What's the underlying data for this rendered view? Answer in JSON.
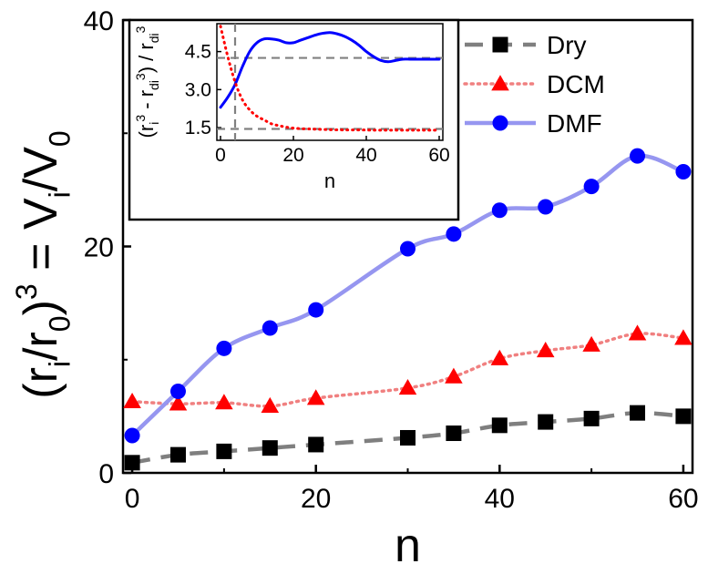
{
  "chart_data": [
    {
      "type": "line",
      "role": "main",
      "xlabel": "n",
      "ylabel": {
        "parts": [
          "(r",
          "i",
          "/r",
          "0",
          ")",
          "3",
          " = V",
          "i",
          "/V",
          "0"
        ]
      },
      "xlim": [
        -1,
        61
      ],
      "ylim": [
        0,
        40
      ],
      "x_ticks": [
        0,
        20,
        40,
        60
      ],
      "y_ticks": [
        0,
        20,
        40
      ],
      "grid": false,
      "legend_position": "top-right",
      "series": [
        {
          "name": "Dry",
          "color": "#000000",
          "line_color": "#7f7f7f",
          "line_style": "dashed",
          "marker": "square",
          "x": [
            0,
            5,
            10,
            15,
            20,
            30,
            35,
            40,
            45,
            50,
            55,
            60
          ],
          "y": [
            0.9,
            1.6,
            1.9,
            2.2,
            2.5,
            3.1,
            3.5,
            4.2,
            4.5,
            4.8,
            5.3,
            5.0
          ]
        },
        {
          "name": "DCM",
          "color": "#ff0000",
          "line_color": "#f08080",
          "line_style": "dotted",
          "marker": "triangle",
          "x": [
            0,
            5,
            10,
            15,
            20,
            30,
            35,
            40,
            45,
            50,
            55,
            60
          ],
          "y": [
            6.3,
            6.1,
            6.2,
            5.9,
            6.6,
            7.5,
            8.5,
            10.1,
            10.8,
            11.3,
            12.3,
            11.9
          ]
        },
        {
          "name": "DMF",
          "color": "#0000ff",
          "line_color": "#9696f0",
          "line_style": "solid",
          "marker": "circle",
          "x": [
            0,
            5,
            10,
            15,
            20,
            30,
            35,
            40,
            45,
            50,
            55,
            60
          ],
          "y": [
            3.3,
            7.2,
            11.0,
            12.8,
            14.4,
            19.8,
            21.1,
            23.2,
            23.5,
            25.3,
            28.0,
            26.6
          ]
        }
      ]
    },
    {
      "type": "line",
      "role": "inset",
      "xlabel": "n",
      "ylabel": {
        "parts": [
          "(r",
          "i",
          "3",
          " - r",
          "di",
          "3",
          ") / r",
          "di",
          "3"
        ]
      },
      "xlim": [
        -1,
        61
      ],
      "ylim": [
        1,
        5.6
      ],
      "x_ticks": [
        0,
        20,
        40,
        60
      ],
      "y_ticks": [
        1.5,
        3.0,
        4.5
      ],
      "y_tick_labels": [
        "1.5",
        "3.0",
        "4.5"
      ],
      "grid": false,
      "reference_lines": {
        "horizontal": [
          4.25,
          1.45
        ],
        "vertical": [
          4
        ]
      },
      "series": [
        {
          "color": "#0000ff",
          "line_style": "solid",
          "x": [
            0,
            2,
            4,
            6,
            8,
            10,
            12,
            14,
            16,
            18,
            20,
            22,
            24,
            26,
            28,
            30,
            32,
            34,
            36,
            38,
            40,
            42,
            44,
            46,
            48,
            50,
            52,
            54,
            56,
            58,
            60
          ],
          "y": [
            2.3,
            2.7,
            3.2,
            3.9,
            4.5,
            4.85,
            5.0,
            5.0,
            4.95,
            4.85,
            4.85,
            4.95,
            5.05,
            5.15,
            5.22,
            5.25,
            5.2,
            5.1,
            4.95,
            4.75,
            4.5,
            4.3,
            4.15,
            4.1,
            4.15,
            4.2,
            4.2,
            4.2,
            4.2,
            4.2,
            4.2
          ]
        },
        {
          "color": "#ff0000",
          "line_style": "dotted",
          "x": [
            0,
            2,
            4,
            6,
            8,
            10,
            12,
            14,
            16,
            18,
            20,
            22,
            24,
            26,
            28,
            30,
            34,
            38,
            42,
            46,
            50,
            54,
            58,
            60
          ],
          "y": [
            5.5,
            4.3,
            3.3,
            2.6,
            2.2,
            1.95,
            1.8,
            1.65,
            1.58,
            1.52,
            1.48,
            1.46,
            1.45,
            1.44,
            1.43,
            1.42,
            1.41,
            1.41,
            1.4,
            1.4,
            1.4,
            1.4,
            1.4,
            1.4
          ]
        }
      ]
    }
  ]
}
